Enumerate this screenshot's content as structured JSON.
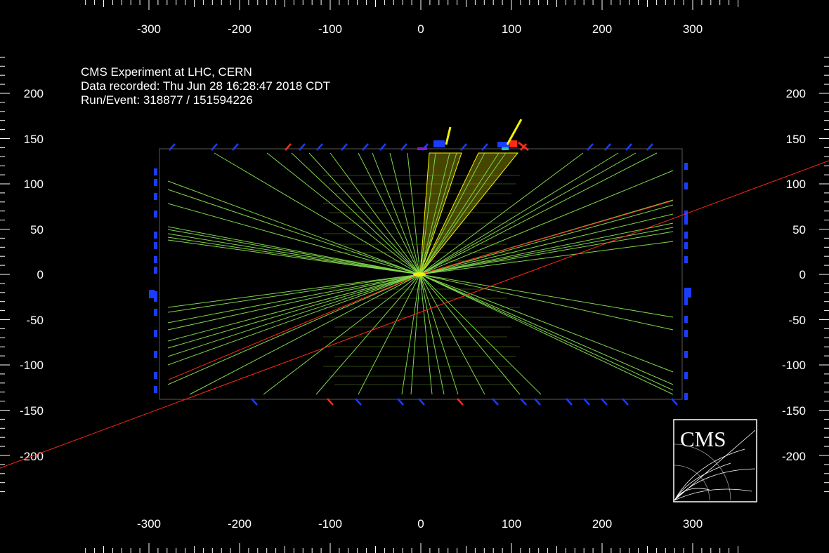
{
  "header": {
    "experiment": "CMS Experiment at LHC, CERN",
    "recorded": "Data recorded: Thu Jun 28 16:28:47 2018 CDT",
    "run_event": "Run/Event: 318877 / 151594226"
  },
  "logo": {
    "text": "CMS"
  },
  "axes": {
    "x_ticks": [
      "-300",
      "-200",
      "-100",
      "0",
      "100",
      "200",
      "300"
    ],
    "y_ticks": [
      "200",
      "150",
      "100",
      "50",
      "0",
      "-50",
      "-100",
      "-150",
      "-200"
    ]
  },
  "colors": {
    "background": "#000000",
    "track": "#7fd64a",
    "jet": "#f2f200",
    "muon": "#ff2a1a",
    "hit": "#1a3cff",
    "frame": "#ffffff",
    "axis_text": "#ffffff"
  }
}
